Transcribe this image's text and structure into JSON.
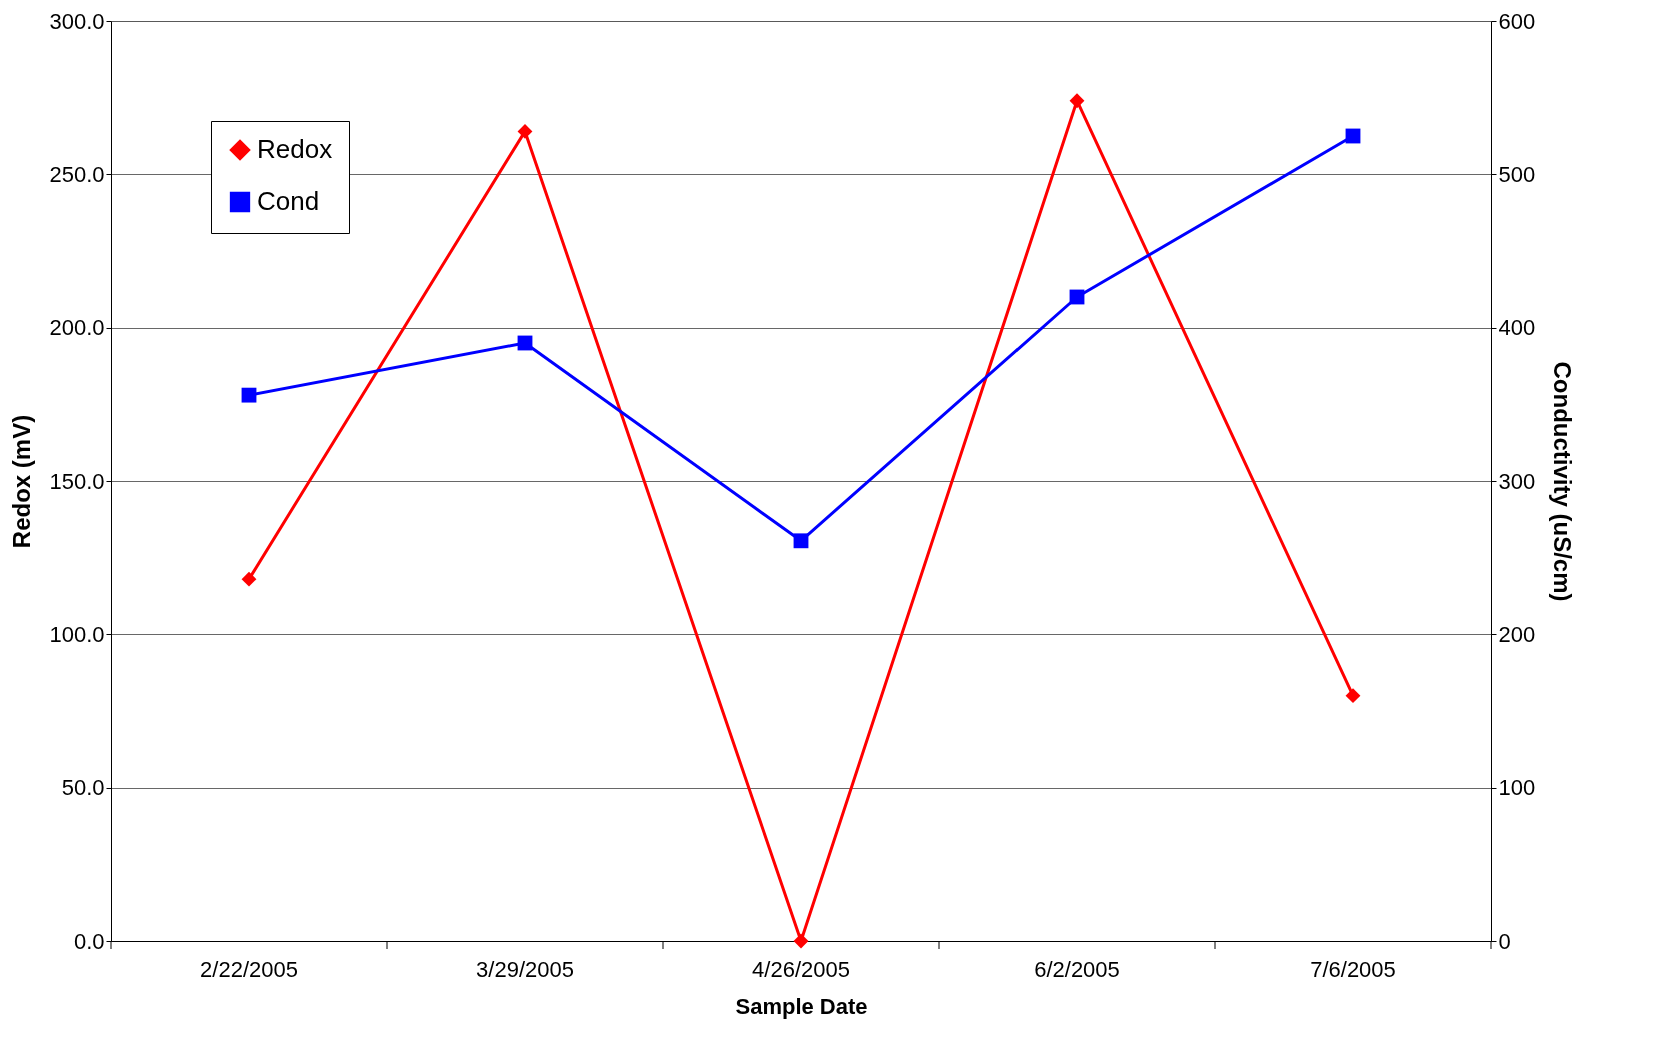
{
  "chart_data": {
    "type": "line",
    "xlabel": "Sample Date",
    "ylabel": "Redox (mV)",
    "y2label": "Conductivity (uS/cm)",
    "categories": [
      "2/22/2005",
      "3/29/2005",
      "4/26/2005",
      "6/2/2005",
      "7/6/2005"
    ],
    "series": [
      {
        "name": "Redox",
        "color": "#ff0000",
        "marker": "diamond",
        "values": [
          118,
          264,
          0,
          274,
          80
        ]
      },
      {
        "name": "Cond",
        "color": "#0000ff",
        "marker": "square",
        "axis": "y2",
        "values": [
          356,
          390,
          261,
          420,
          525
        ]
      }
    ],
    "ylim": [
      0,
      300
    ],
    "yticks": [
      {
        "value": 0,
        "label": "0.0"
      },
      {
        "value": 50,
        "label": "50.0"
      },
      {
        "value": 100,
        "label": "100.0"
      },
      {
        "value": 150,
        "label": "150.0"
      },
      {
        "value": 200,
        "label": "200.0"
      },
      {
        "value": 250,
        "label": "250.0"
      },
      {
        "value": 300,
        "label": "300.0"
      }
    ],
    "y2lim": [
      0,
      600
    ],
    "y2ticks": [
      0,
      100,
      200,
      300,
      400,
      500,
      600
    ],
    "grid": "y",
    "legend": "top left",
    "line_style": "solid"
  }
}
